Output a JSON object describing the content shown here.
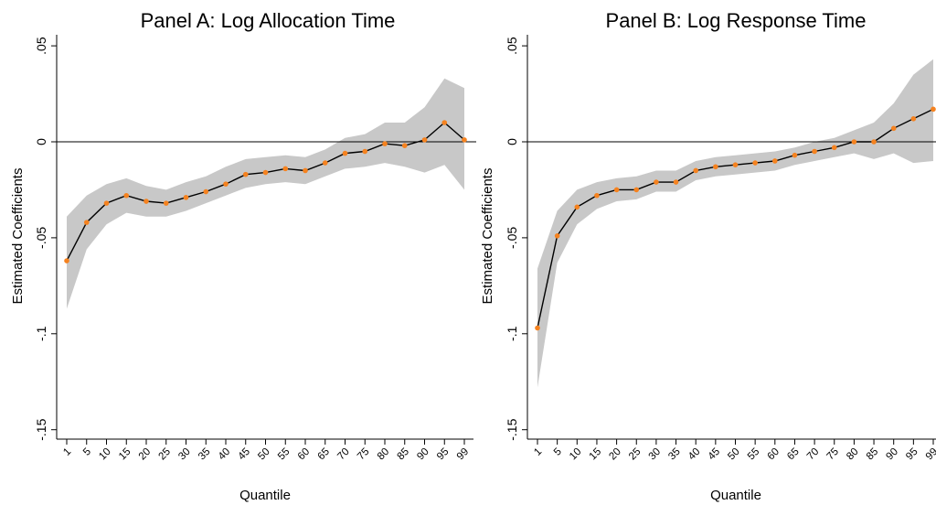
{
  "chart_data": [
    {
      "type": "line",
      "title": "Panel A: Log Allocation Time",
      "xlabel": "Quantile",
      "ylabel": "Estimated Coefficients",
      "categories": [
        "1",
        "5",
        "10",
        "15",
        "20",
        "25",
        "30",
        "35",
        "40",
        "45",
        "50",
        "55",
        "60",
        "65",
        "70",
        "75",
        "80",
        "85",
        "90",
        "95",
        "99"
      ],
      "yticks": [
        ".05",
        "0",
        "-.05",
        "-.1",
        "-.15"
      ],
      "ylim": [
        -0.155,
        0.055
      ],
      "reference_line": 0,
      "series": [
        {
          "values": [
            -0.062,
            -0.042,
            -0.032,
            -0.028,
            -0.031,
            -0.032,
            -0.029,
            -0.026,
            -0.022,
            -0.017,
            -0.016,
            -0.014,
            -0.015,
            -0.011,
            -0.006,
            -0.005,
            -0.001,
            -0.002,
            0.001,
            0.01,
            0.001
          ],
          "ci_upper": [
            -0.039,
            -0.028,
            -0.022,
            -0.019,
            -0.023,
            -0.025,
            -0.021,
            -0.018,
            -0.013,
            -0.009,
            -0.008,
            -0.007,
            -0.008,
            -0.004,
            0.002,
            0.004,
            0.01,
            0.01,
            0.018,
            0.033,
            0.028
          ],
          "ci_lower": [
            -0.087,
            -0.056,
            -0.043,
            -0.037,
            -0.039,
            -0.039,
            -0.036,
            -0.032,
            -0.028,
            -0.024,
            -0.022,
            -0.021,
            -0.022,
            -0.018,
            -0.014,
            -0.013,
            -0.011,
            -0.013,
            -0.016,
            -0.012,
            -0.025
          ]
        }
      ],
      "colors": {
        "line": "#000000",
        "marker": "#F5821F",
        "band": "#C8C8C8"
      }
    },
    {
      "type": "line",
      "title": "Panel B: Log Response Time",
      "xlabel": "Quantile",
      "ylabel": "Estimated Coefficients",
      "categories": [
        "1",
        "5",
        "10",
        "15",
        "20",
        "25",
        "30",
        "35",
        "40",
        "45",
        "50",
        "55",
        "60",
        "65",
        "70",
        "75",
        "80",
        "85",
        "90",
        "95",
        "99"
      ],
      "yticks": [
        ".05",
        "0",
        "-.05",
        "-.1",
        "-.15"
      ],
      "ylim": [
        -0.155,
        0.055
      ],
      "reference_line": 0,
      "series": [
        {
          "values": [
            -0.097,
            -0.049,
            -0.034,
            -0.028,
            -0.025,
            -0.025,
            -0.021,
            -0.021,
            -0.015,
            -0.013,
            -0.012,
            -0.011,
            -0.01,
            -0.007,
            -0.005,
            -0.003,
            0.0,
            0.0,
            0.007,
            0.012,
            0.017
          ],
          "ci_upper": [
            -0.066,
            -0.036,
            -0.025,
            -0.021,
            -0.019,
            -0.018,
            -0.015,
            -0.015,
            -0.01,
            -0.008,
            -0.007,
            -0.006,
            -0.005,
            -0.003,
            0.0,
            0.002,
            0.006,
            0.01,
            0.02,
            0.035,
            0.043
          ],
          "ci_lower": [
            -0.128,
            -0.063,
            -0.043,
            -0.035,
            -0.031,
            -0.03,
            -0.026,
            -0.026,
            -0.02,
            -0.018,
            -0.017,
            -0.016,
            -0.015,
            -0.012,
            -0.01,
            -0.008,
            -0.006,
            -0.009,
            -0.006,
            -0.011,
            -0.01
          ]
        }
      ],
      "colors": {
        "line": "#000000",
        "marker": "#F5821F",
        "band": "#C8C8C8"
      }
    }
  ]
}
